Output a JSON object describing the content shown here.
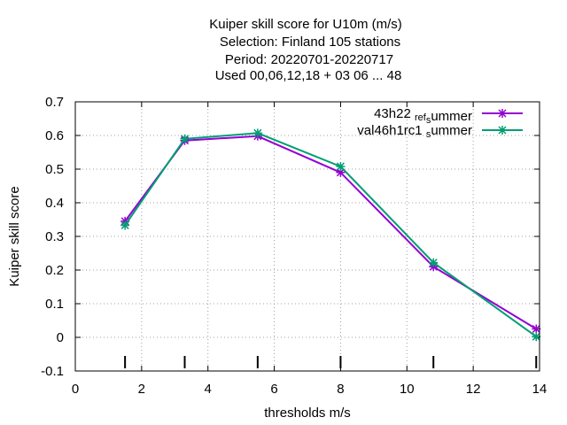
{
  "chart_data": {
    "type": "line",
    "title_lines": [
      "Kuiper skill score  for U10m (m/s)",
      "Selection: Finland    105 stations",
      "Period: 20220701-20220717",
      "Used  00,06,12,18  + 03 06 ... 48"
    ],
    "xlabel": "thresholds m/s",
    "ylabel": "Kuiper skill score",
    "xlim": [
      0,
      14
    ],
    "ylim": [
      -0.1,
      0.7
    ],
    "xticks": [
      "0",
      "2",
      "4",
      "6",
      "8",
      "10",
      "12",
      "14"
    ],
    "yticks": [
      "-0.1",
      "0",
      "0.1",
      "0.2",
      "0.3",
      "0.4",
      "0.5",
      "0.6",
      "0.7"
    ],
    "grid": true,
    "legend_position": "top-right",
    "threshold_markers": [
      1.5,
      3.3,
      5.5,
      8,
      10.8,
      13.9
    ],
    "series": [
      {
        "name_main": "43h22 ",
        "name_sub1": "ref",
        "name_mid": "",
        "name_sub2": "s",
        "name_tail": "ummer",
        "color": "#9400d3",
        "x": [
          1.5,
          3.3,
          5.5,
          8,
          10.8,
          13.9
        ],
        "y": [
          0.345,
          0.585,
          0.598,
          0.49,
          0.21,
          0.025
        ]
      },
      {
        "name_main": "val46h1rc1 ",
        "name_sub1": "",
        "name_mid": "",
        "name_sub2": "s",
        "name_tail": "ummer",
        "color": "#009e73",
        "x": [
          1.5,
          3.3,
          5.5,
          8,
          10.8,
          13.9
        ],
        "y": [
          0.333,
          0.59,
          0.607,
          0.508,
          0.222,
          0.002
        ]
      }
    ]
  }
}
